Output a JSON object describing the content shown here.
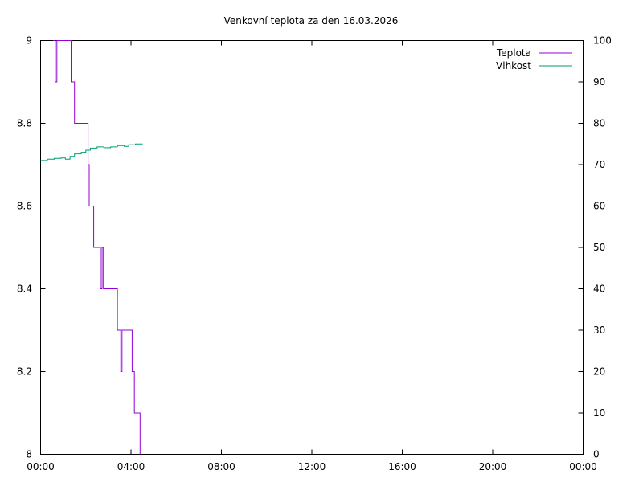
{
  "chart_data": {
    "type": "line",
    "title": "Venkovní teplota za den 16.03.2026",
    "x_ticks": [
      "00:00",
      "04:00",
      "08:00",
      "12:00",
      "16:00",
      "20:00",
      "00:00"
    ],
    "xlim_hours": [
      0,
      24
    ],
    "y_left": {
      "ylim": [
        8,
        9
      ],
      "ticks": [
        {
          "value": 8,
          "label": "8"
        },
        {
          "value": 8.2,
          "label": "8.2"
        },
        {
          "value": 8.4,
          "label": "8.4"
        },
        {
          "value": 8.6,
          "label": "8.6"
        },
        {
          "value": 8.8,
          "label": "8.8"
        },
        {
          "value": 9,
          "label": "9"
        }
      ]
    },
    "y_right": {
      "ylim": [
        0,
        100
      ],
      "ticks": [
        {
          "value": 0,
          "label": "0"
        },
        {
          "value": 10,
          "label": "10"
        },
        {
          "value": 20,
          "label": "20"
        },
        {
          "value": 30,
          "label": "30"
        },
        {
          "value": 40,
          "label": "40"
        },
        {
          "value": 50,
          "label": "50"
        },
        {
          "value": 60,
          "label": "60"
        },
        {
          "value": 70,
          "label": "70"
        },
        {
          "value": 80,
          "label": "80"
        },
        {
          "value": 90,
          "label": "90"
        },
        {
          "value": 100,
          "label": "100"
        }
      ]
    },
    "grid": false,
    "legend_position": "top-right",
    "series": [
      {
        "name": "Teplota",
        "axis": "left",
        "color": "#9400d3",
        "step": true,
        "points": [
          [
            0.55,
            9.0
          ],
          [
            0.65,
            8.9
          ],
          [
            0.72,
            9.0
          ],
          [
            1.05,
            9.0
          ],
          [
            1.15,
            9.0
          ],
          [
            1.35,
            8.9
          ],
          [
            1.5,
            8.8
          ],
          [
            2.1,
            8.7
          ],
          [
            2.15,
            8.6
          ],
          [
            2.35,
            8.5
          ],
          [
            2.65,
            8.4
          ],
          [
            2.72,
            8.5
          ],
          [
            2.78,
            8.4
          ],
          [
            3.4,
            8.3
          ],
          [
            3.55,
            8.2
          ],
          [
            3.6,
            8.3
          ],
          [
            4.05,
            8.2
          ],
          [
            4.15,
            8.1
          ],
          [
            4.4,
            8.0
          ]
        ]
      },
      {
        "name": "Vlhkost",
        "axis": "right",
        "color": "#009e73",
        "step": true,
        "points": [
          [
            0.0,
            71.0
          ],
          [
            0.3,
            71.3
          ],
          [
            0.6,
            71.5
          ],
          [
            0.9,
            71.6
          ],
          [
            1.1,
            71.3
          ],
          [
            1.3,
            72.0
          ],
          [
            1.5,
            72.6
          ],
          [
            1.8,
            73.0
          ],
          [
            2.0,
            73.5
          ],
          [
            2.2,
            74.0
          ],
          [
            2.5,
            74.3
          ],
          [
            2.8,
            74.1
          ],
          [
            3.1,
            74.3
          ],
          [
            3.4,
            74.6
          ],
          [
            3.7,
            74.4
          ],
          [
            3.9,
            74.8
          ],
          [
            4.2,
            75.0
          ],
          [
            4.5,
            75.1
          ]
        ]
      }
    ]
  }
}
